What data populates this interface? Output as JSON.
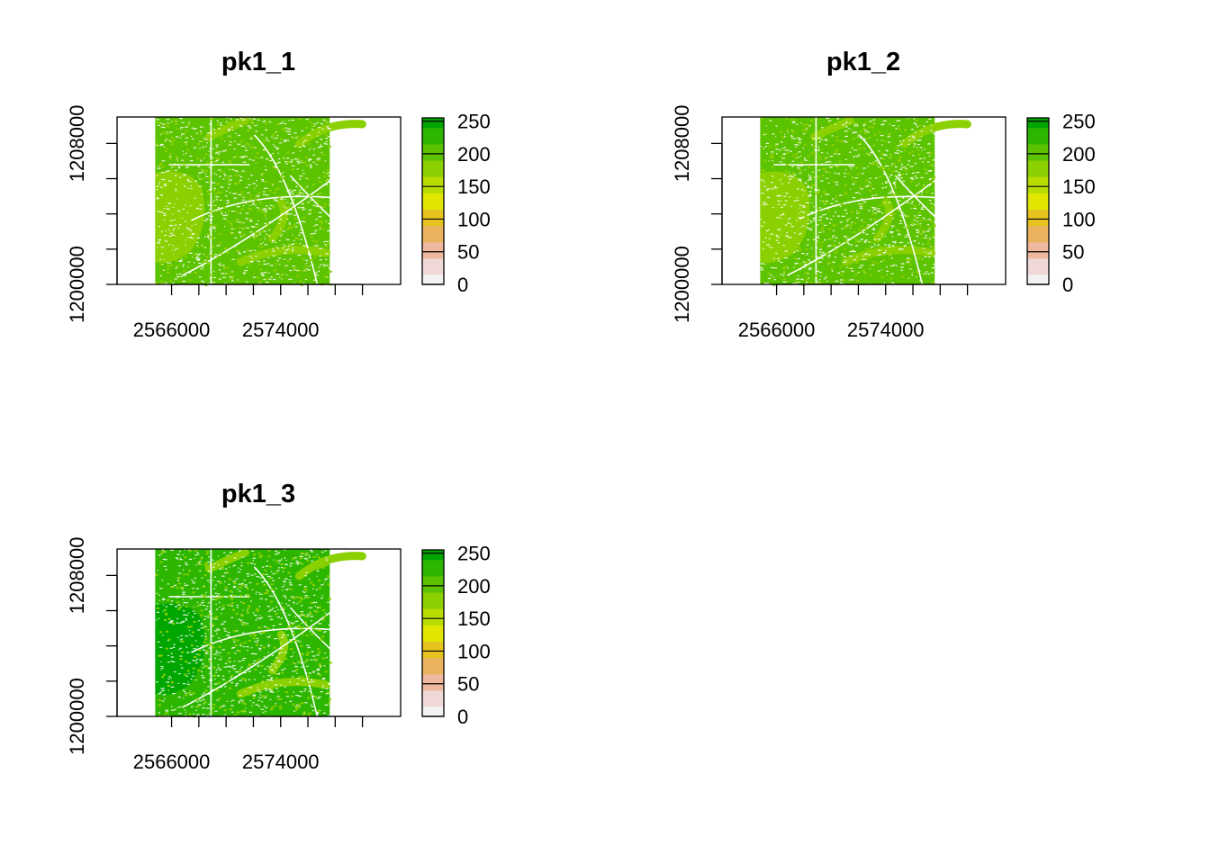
{
  "chart_data": [
    {
      "type": "heatmap",
      "title": "pk1_1",
      "xlim": [
        2562000,
        2582800
      ],
      "ylim": [
        1200000,
        1209500
      ],
      "raster_extent": {
        "x": [
          2564800,
          2577600
        ],
        "y": [
          1200000,
          1209500
        ]
      },
      "x_ticks": [
        2566000,
        2568000,
        2570000,
        2572000,
        2574000,
        2576000,
        2578000,
        2580000
      ],
      "x_tick_labels": [
        {
          "value": 2566000,
          "label": "2566000"
        },
        {
          "value": 2574000,
          "label": "2574000"
        }
      ],
      "y_ticks": [
        1200000,
        1202000,
        1204000,
        1206000,
        1208000
      ],
      "y_tick_labels": [
        {
          "value": 1200000,
          "label": "1200000"
        },
        {
          "value": 1208000,
          "label": "1208000"
        }
      ],
      "legend": {
        "placement": "right",
        "range": [
          0,
          255
        ],
        "tick_values": [
          0,
          50,
          100,
          150,
          200,
          250
        ],
        "tick_labels": [
          "0",
          "50",
          "100",
          "150",
          "200",
          "250"
        ]
      },
      "dominant_value": 200
    },
    {
      "type": "heatmap",
      "title": "pk1_2",
      "xlim": [
        2562000,
        2582800
      ],
      "ylim": [
        1200000,
        1209500
      ],
      "raster_extent": {
        "x": [
          2564800,
          2577600
        ],
        "y": [
          1200000,
          1209500
        ]
      },
      "x_ticks": [
        2566000,
        2568000,
        2570000,
        2572000,
        2574000,
        2576000,
        2578000,
        2580000
      ],
      "x_tick_labels": [
        {
          "value": 2566000,
          "label": "2566000"
        },
        {
          "value": 2574000,
          "label": "2574000"
        }
      ],
      "y_ticks": [
        1200000,
        1202000,
        1204000,
        1206000,
        1208000
      ],
      "y_tick_labels": [
        {
          "value": 1200000,
          "label": "1200000"
        },
        {
          "value": 1208000,
          "label": "1208000"
        }
      ],
      "legend": {
        "placement": "right",
        "range": [
          0,
          255
        ],
        "tick_values": [
          0,
          50,
          100,
          150,
          200,
          250
        ],
        "tick_labels": [
          "0",
          "50",
          "100",
          "150",
          "200",
          "250"
        ]
      },
      "dominant_value": 205
    },
    {
      "type": "heatmap",
      "title": "pk1_3",
      "xlim": [
        2562000,
        2582800
      ],
      "ylim": [
        1200000,
        1209500
      ],
      "raster_extent": {
        "x": [
          2564800,
          2577600
        ],
        "y": [
          1200000,
          1209500
        ]
      },
      "x_ticks": [
        2566000,
        2568000,
        2570000,
        2572000,
        2574000,
        2576000,
        2578000,
        2580000
      ],
      "x_tick_labels": [
        {
          "value": 2566000,
          "label": "2566000"
        },
        {
          "value": 2574000,
          "label": "2574000"
        }
      ],
      "y_ticks": [
        1200000,
        1202000,
        1204000,
        1206000,
        1208000
      ],
      "y_tick_labels": [
        {
          "value": 1200000,
          "label": "1200000"
        },
        {
          "value": 1208000,
          "label": "1208000"
        }
      ],
      "legend": {
        "placement": "right",
        "range": [
          0,
          255
        ],
        "tick_values": [
          0,
          50,
          100,
          150,
          200,
          250
        ],
        "tick_labels": [
          "0",
          "50",
          "100",
          "150",
          "200",
          "250"
        ]
      },
      "dominant_value": 230
    }
  ],
  "colors": {
    "palette": [
      "#f2f2f2",
      "#f0d8d8",
      "#eeb99f",
      "#ebb25e",
      "#e6c31e",
      "#e0e600",
      "#b8dc00",
      "#8bd000",
      "#5cc300",
      "#2db600",
      "#00a600"
    ],
    "background": "#ffffff",
    "feature_white": "#ffffff"
  }
}
